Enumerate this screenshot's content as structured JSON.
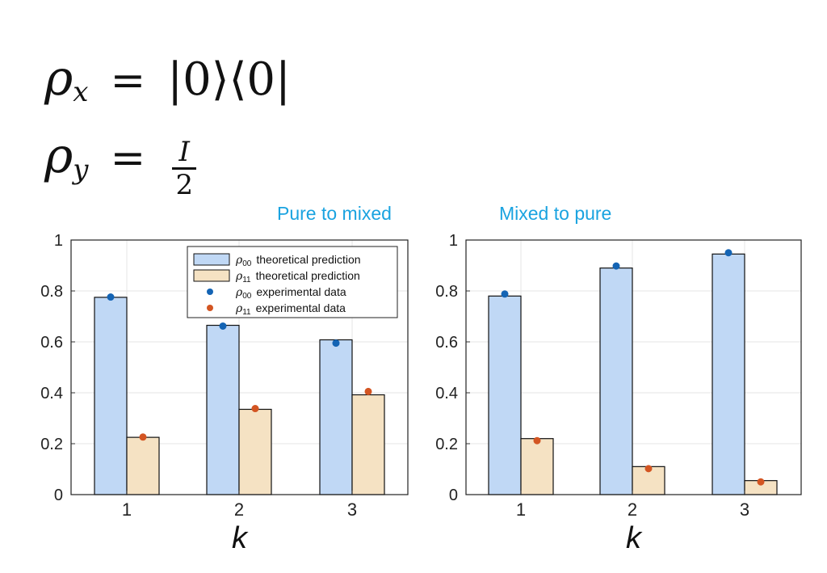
{
  "equations": {
    "rho_x": {
      "symbol": "ρ",
      "sub": "x",
      "op": "=",
      "rhs": "|0⟩⟨0|"
    },
    "rho_y": {
      "symbol": "ρ",
      "sub": "y",
      "op": "=",
      "num": "I",
      "den": "2"
    }
  },
  "colors": {
    "rho00_bar": "#c0d8f5",
    "rho11_bar": "#f5e2c3",
    "rho00_point": "#1464b4",
    "rho11_point": "#d35522",
    "title": "#1aa3e0",
    "grid": "#e6e6e6"
  },
  "legend": {
    "items": [
      {
        "symbol": "ρ",
        "sub": "00",
        "text": "theoretical prediction",
        "kind": "bar00"
      },
      {
        "symbol": "ρ",
        "sub": "11",
        "text": "theoretical prediction",
        "kind": "bar11"
      },
      {
        "symbol": "ρ",
        "sub": "00",
        "text": "experimental data",
        "kind": "dot00"
      },
      {
        "symbol": "ρ",
        "sub": "11",
        "text": "experimental data",
        "kind": "dot11"
      }
    ],
    "placement": "top-right"
  },
  "chart_data": [
    {
      "type": "bar",
      "title": "Pure to mixed",
      "xlabel": "k",
      "ylabel": "",
      "categories": [
        "1",
        "2",
        "3"
      ],
      "ylim": [
        0,
        1
      ],
      "yticks": [
        "0",
        "0.2",
        "0.4",
        "0.6",
        "0.8",
        "1"
      ],
      "grid": true,
      "series": [
        {
          "name": "ρ00 theoretical prediction",
          "values": [
            0.775,
            0.665,
            0.608
          ]
        },
        {
          "name": "ρ11 theoretical prediction",
          "values": [
            0.225,
            0.335,
            0.392
          ]
        }
      ],
      "points": [
        {
          "name": "ρ00 experimental data",
          "values": [
            0.776,
            0.662,
            0.595
          ]
        },
        {
          "name": "ρ11 experimental data",
          "values": [
            0.226,
            0.338,
            0.405
          ]
        }
      ]
    },
    {
      "type": "bar",
      "title": "Mixed to pure",
      "xlabel": "k",
      "ylabel": "",
      "categories": [
        "1",
        "2",
        "3"
      ],
      "ylim": [
        0,
        1
      ],
      "yticks": [
        "0",
        "0.2",
        "0.4",
        "0.6",
        "0.8",
        "1"
      ],
      "grid": true,
      "series": [
        {
          "name": "ρ00 theoretical prediction",
          "values": [
            0.78,
            0.89,
            0.945
          ]
        },
        {
          "name": "ρ11 theoretical prediction",
          "values": [
            0.22,
            0.11,
            0.055
          ]
        }
      ],
      "points": [
        {
          "name": "ρ00 experimental data",
          "values": [
            0.788,
            0.898,
            0.95
          ]
        },
        {
          "name": "ρ11 experimental data",
          "values": [
            0.212,
            0.102,
            0.05
          ]
        }
      ]
    }
  ]
}
